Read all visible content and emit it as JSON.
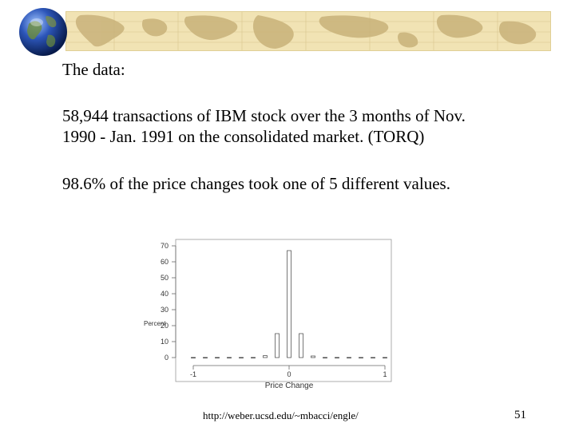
{
  "slide": {
    "heading": "The data:",
    "paragraph1_line1": "58,944 transactions of IBM stock over the 3 months of Nov.",
    "paragraph1_line2": "1990 - Jan. 1991 on the consolidated market.  (TORQ)",
    "paragraph2": "98.6% of the price changes took one of 5 different values.",
    "footer_url": "http://weber.ucsd.edu/~mbacci/engle/",
    "page_number": "51"
  },
  "chart_data": {
    "type": "bar",
    "xlabel": "Price Change",
    "ylabel": "Percent",
    "xlim": [
      -1,
      1
    ],
    "ylim": [
      0,
      70
    ],
    "x_ticks": [
      -1,
      0,
      1
    ],
    "y_ticks": [
      0,
      10,
      20,
      30,
      40,
      50,
      60,
      70
    ],
    "x": [
      -1,
      -0.875,
      -0.75,
      -0.625,
      -0.5,
      -0.375,
      -0.25,
      -0.125,
      0,
      0.125,
      0.25,
      0.375,
      0.5,
      0.625,
      0.75,
      0.875,
      1
    ],
    "values": [
      0.1,
      0.1,
      0.1,
      0.1,
      0.1,
      0.1,
      1.2,
      15,
      67,
      15,
      1.0,
      0.1,
      0.1,
      0.1,
      0.1,
      0.1,
      0.1
    ],
    "grid": false
  }
}
